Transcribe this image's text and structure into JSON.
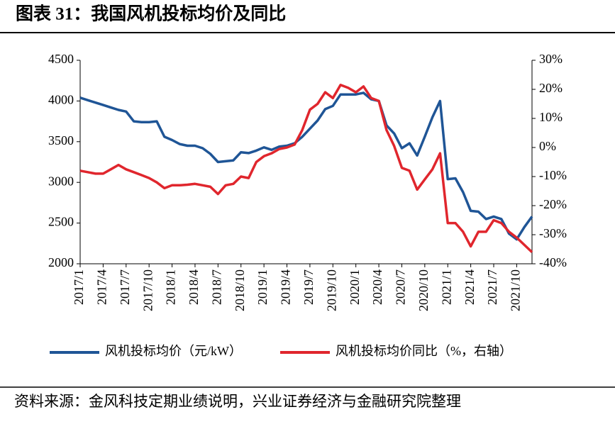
{
  "chart_data": {
    "type": "line",
    "title": "图表 31：我国风机投标均价及同比",
    "source": "资料来源：金风科技定期业绩说明，兴业证券经济与金融研究院整理",
    "categories": [
      "2017/1",
      null,
      null,
      "2017/4",
      null,
      null,
      "2017/7",
      null,
      null,
      "2017/10",
      null,
      null,
      "2018/1",
      null,
      null,
      "2018/4",
      null,
      null,
      "2018/7",
      null,
      null,
      "2018/10",
      null,
      null,
      "2019/1",
      null,
      null,
      "2019/4",
      null,
      null,
      "2019/7",
      null,
      null,
      "2019/10",
      null,
      null,
      "2020/1",
      null,
      null,
      "2020/4",
      null,
      null,
      "2020/7",
      null,
      null,
      "2020/10",
      null,
      null,
      "2021/1",
      null,
      null,
      "2021/4",
      null,
      null,
      "2021/7",
      null,
      null,
      "2021/10",
      null,
      null
    ],
    "series": [
      {
        "name": "风机投标均价（元/kW）",
        "color": "#1f5596",
        "values": [
          4040,
          4010,
          3980,
          3950,
          3920,
          3890,
          3870,
          3750,
          3740,
          3740,
          3750,
          3560,
          3520,
          3470,
          3450,
          3450,
          3420,
          3350,
          3250,
          3260,
          3270,
          3370,
          3360,
          3390,
          3430,
          3400,
          3440,
          3450,
          3480,
          3560,
          3660,
          3760,
          3900,
          3940,
          4080,
          4080,
          4080,
          4100,
          4020,
          4000,
          3700,
          3600,
          3420,
          3480,
          3330,
          3560,
          3800,
          4000,
          3040,
          3050,
          2880,
          2650,
          2640,
          2550,
          2580,
          2550,
          2370,
          2300,
          2450,
          2580
        ]
      },
      {
        "name": "风机投标均价同比（%，右轴）",
        "color": "#e0262d",
        "axis": "y2",
        "values": [
          -8,
          -8.5,
          -9,
          -9,
          -7.5,
          -6,
          -7.5,
          -8.5,
          -9.5,
          -10.5,
          -12,
          -14,
          -13,
          -13,
          -12.8,
          -12.5,
          -13,
          -13.5,
          -16,
          -13,
          -12.5,
          -10,
          -10.5,
          -5,
          -3,
          -2,
          -0.5,
          0,
          1,
          6,
          13,
          15,
          19,
          17,
          21.5,
          20.5,
          19,
          21,
          17,
          16,
          6,
          0.5,
          -7,
          -8,
          -14.5,
          -11,
          -7.5,
          -2,
          -26,
          -26,
          -29,
          -34,
          -29,
          -29,
          -25,
          -26,
          -29,
          -31,
          -33.5,
          -36
        ]
      }
    ],
    "ylim": [
      2000,
      4500
    ],
    "yticks": [
      2000,
      2500,
      3000,
      3500,
      4000,
      4500
    ],
    "y2lim": [
      -40,
      30
    ],
    "y2ticks": [
      {
        "value": -40,
        "label": "-40%"
      },
      {
        "value": -30,
        "label": "-30%"
      },
      {
        "value": -20,
        "label": "-20%"
      },
      {
        "value": -10,
        "label": "-10%"
      },
      {
        "value": 0,
        "label": "0%"
      },
      {
        "value": 10,
        "label": "10%"
      },
      {
        "value": 20,
        "label": "20%"
      },
      {
        "value": 30,
        "label": "30%"
      }
    ],
    "grid": false
  }
}
